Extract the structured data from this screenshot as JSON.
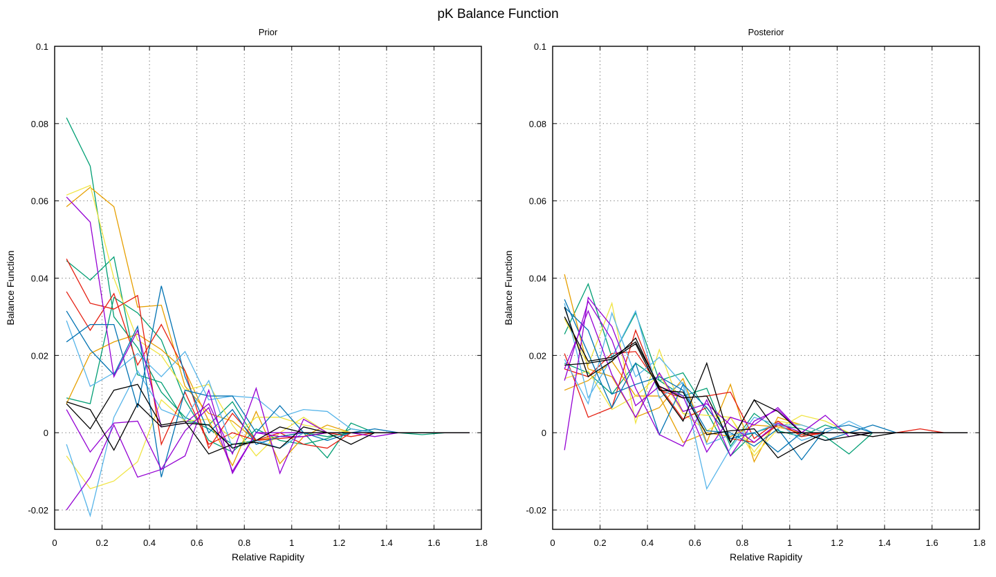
{
  "figure": {
    "title": "pK Balance Function"
  },
  "palette": [
    "#009e73",
    "#e69f00",
    "#f0e442",
    "#e51e10",
    "#56b4e9",
    "#0072b2",
    "#9400d3",
    "#000000"
  ],
  "chart_data": [
    {
      "type": "line",
      "title": "Prior",
      "xlabel": "Relative Rapidity",
      "ylabel": "Balance Function",
      "xlim": [
        0,
        1.8
      ],
      "ylim": [
        -0.025,
        0.1
      ],
      "xticks": [
        0,
        0.2,
        0.4,
        0.6,
        0.8,
        1,
        1.2,
        1.4,
        1.6,
        1.8
      ],
      "xtick_labels": [
        "0",
        "0.2",
        "0.4",
        "0.6",
        "0.8",
        "1",
        "1.2",
        "1.4",
        "1.6",
        "1.8"
      ],
      "yticks": [
        -0.02,
        0,
        0.02,
        0.04,
        0.06,
        0.08,
        0.1
      ],
      "ytick_labels": [
        "-0.02",
        "0",
        "0.02",
        "0.04",
        "0.06",
        "0.08",
        "0.1"
      ],
      "grid": true,
      "x": [
        0.05,
        0.15,
        0.25,
        0.35,
        0.45,
        0.55,
        0.65,
        0.75,
        0.85,
        0.95,
        1.05,
        1.15,
        1.25,
        1.35,
        1.45,
        1.55,
        1.65,
        1.75
      ],
      "series": [
        {
          "color": "#009e73",
          "values": [
            0.0815,
            0.069,
            0.03,
            0.022,
            0.0105,
            0.004,
            0.001,
            -0.003,
            -0.002,
            -0.001,
            0.0,
            -0.001,
            0.0,
            0.0,
            0.0,
            -0.0005,
            0,
            0
          ]
        },
        {
          "color": "#009e73",
          "values": [
            0.0445,
            0.0395,
            0.0455,
            0.015,
            0.013,
            0.003,
            0.002,
            0.008,
            -0.002,
            -0.004,
            0.0,
            -0.0065,
            0.0025,
            0.0,
            0.0,
            0,
            0,
            0
          ]
        },
        {
          "color": "#009e73",
          "values": [
            0.009,
            0.0075,
            0.035,
            0.031,
            0.024,
            0.0085,
            -0.002,
            -0.005,
            0.001,
            -0.002,
            -0.003,
            -0.0015,
            0.001,
            0.0,
            0.0,
            0,
            0,
            0
          ]
        },
        {
          "color": "#e69f00",
          "values": [
            0.0585,
            0.0635,
            0.0585,
            0.0325,
            0.033,
            0.012,
            0.005,
            0.003,
            -0.002,
            -0.001,
            0.0,
            0.0,
            0.0,
            0.0,
            0.0,
            0,
            0,
            0
          ]
        },
        {
          "color": "#e69f00",
          "values": [
            0.0075,
            0.0205,
            0.0235,
            0.0255,
            0.0215,
            0.016,
            0.003,
            -0.0085,
            0.0055,
            -0.008,
            -0.001,
            0.002,
            0.0,
            0.0,
            0.0,
            0,
            0,
            0
          ]
        },
        {
          "color": "#f0e442",
          "values": [
            0.0615,
            0.064,
            0.04,
            0.024,
            0.02,
            0.011,
            0.0125,
            0.002,
            -0.006,
            0.0,
            0.004,
            0.0,
            0.0,
            0.0,
            0.0,
            0,
            0,
            0
          ]
        },
        {
          "color": "#f0e442",
          "values": [
            -0.006,
            -0.0145,
            -0.0125,
            -0.0075,
            0.0085,
            0.003,
            0.0035,
            -0.0015,
            0.004,
            0.004,
            0.002,
            0.001,
            0.0,
            0.0,
            0.0,
            0,
            0,
            0
          ]
        },
        {
          "color": "#e51e10",
          "values": [
            0.045,
            0.0335,
            0.032,
            0.0355,
            -0.003,
            0.0105,
            -0.003,
            0.0,
            -0.002,
            -0.0015,
            -0.001,
            0.0,
            -0.001,
            0.0,
            0.0,
            0,
            0,
            0
          ]
        },
        {
          "color": "#e51e10",
          "values": [
            0.0365,
            0.0265,
            0.036,
            0.0175,
            0.028,
            0.016,
            -0.004,
            0.005,
            -0.002,
            0.0,
            -0.003,
            -0.004,
            0.0,
            0.0,
            0.0,
            0,
            0,
            0
          ]
        },
        {
          "color": "#56b4e9",
          "values": [
            0.029,
            0.012,
            0.0155,
            0.0205,
            0.0145,
            0.021,
            0.0085,
            0.0095,
            0.009,
            0.004,
            0.006,
            0.0055,
            0.001,
            0.0,
            0.0,
            0,
            0,
            0
          ]
        },
        {
          "color": "#56b4e9",
          "values": [
            -0.003,
            -0.0215,
            0.004,
            0.016,
            0.006,
            0.0035,
            0.0135,
            -0.004,
            -0.002,
            -0.004,
            0.0,
            0.0,
            0.0,
            0.0,
            0.0,
            0,
            0,
            0
          ]
        },
        {
          "color": "#0072b2",
          "values": [
            0.0315,
            0.0215,
            0.015,
            0.0275,
            -0.0115,
            0.011,
            0.0095,
            0.0095,
            0.0,
            0.007,
            0.0,
            -0.002,
            0.0,
            0.001,
            0.0,
            0,
            0,
            0
          ]
        },
        {
          "color": "#0072b2",
          "values": [
            0.0235,
            0.028,
            0.028,
            0.0065,
            0.038,
            0.0145,
            0.0,
            0.006,
            -0.003,
            -0.001,
            0.0,
            0.0,
            0.0,
            0.0,
            0.0,
            0,
            0,
            0
          ]
        },
        {
          "color": "#9400d3",
          "values": [
            0.061,
            0.0545,
            0.0145,
            0.0265,
            0.0015,
            0.0025,
            0.0075,
            -0.0055,
            0.0115,
            -0.0105,
            0.0035,
            0.0,
            0.0,
            0.0,
            0.0,
            0,
            0,
            0
          ]
        },
        {
          "color": "#9400d3",
          "values": [
            0.006,
            -0.005,
            0.0025,
            0.003,
            -0.0095,
            0.0005,
            0.0065,
            -0.01,
            0.0,
            -0.001,
            -0.001,
            0.0,
            0.0,
            0.0,
            0.0,
            0,
            0,
            0
          ]
        },
        {
          "color": "#9400d3",
          "values": [
            -0.02,
            -0.0115,
            0.002,
            -0.0115,
            -0.0095,
            -0.006,
            0.011,
            -0.0105,
            0.0,
            0.0,
            0.0,
            0.0,
            0.0,
            -0.001,
            0.0,
            0,
            0,
            0
          ]
        },
        {
          "color": "#000000",
          "values": [
            0.0075,
            0.001,
            0.011,
            0.0125,
            0.002,
            0.003,
            -0.0055,
            -0.003,
            -0.0025,
            -0.004,
            0.0015,
            0.0,
            -0.003,
            0.0,
            0.0,
            0,
            0,
            0
          ]
        },
        {
          "color": "#000000",
          "values": [
            0.008,
            0.006,
            -0.0045,
            0.0075,
            0.0015,
            0.0025,
            0.002,
            -0.004,
            -0.002,
            0.0015,
            0.0,
            0.0,
            0.0,
            0.0,
            0.0,
            0,
            0,
            0
          ]
        }
      ]
    },
    {
      "type": "line",
      "title": "Posterior",
      "xlabel": "Relative Rapidity",
      "ylabel": "Balance Function",
      "xlim": [
        0,
        1.8
      ],
      "ylim": [
        -0.025,
        0.1
      ],
      "xticks": [
        0,
        0.2,
        0.4,
        0.6,
        0.8,
        1,
        1.2,
        1.4,
        1.6,
        1.8
      ],
      "xtick_labels": [
        "0",
        "0.2",
        "0.4",
        "0.6",
        "0.8",
        "1",
        "1.2",
        "1.4",
        "1.6",
        "1.8"
      ],
      "yticks": [
        -0.02,
        0,
        0.02,
        0.04,
        0.06,
        0.08,
        0.1
      ],
      "ytick_labels": [
        "-0.02",
        "0",
        "0.02",
        "0.04",
        "0.06",
        "0.08",
        "0.1"
      ],
      "grid": true,
      "x": [
        0.05,
        0.15,
        0.25,
        0.35,
        0.45,
        0.55,
        0.65,
        0.75,
        0.85,
        0.95,
        1.05,
        1.15,
        1.25,
        1.35,
        1.45,
        1.55,
        1.65,
        1.75
      ],
      "series": [
        {
          "color": "#009e73",
          "values": [
            0.0255,
            0.0385,
            0.0195,
            0.031,
            0.0135,
            0.0155,
            0.0055,
            -0.006,
            0.0,
            0.002,
            0.001,
            -0.001,
            -0.0055,
            0.0,
            0.0,
            0,
            0,
            0
          ]
        },
        {
          "color": "#009e73",
          "values": [
            0.018,
            0.0155,
            0.01,
            0.018,
            0.0135,
            0.0095,
            0.0115,
            -0.0035,
            0.005,
            0.0005,
            -0.001,
            0.002,
            0.0,
            0.0,
            0.0,
            0,
            0,
            0
          ]
        },
        {
          "color": "#e69f00",
          "values": [
            0.041,
            0.0165,
            0.0145,
            0.004,
            0.0065,
            0.014,
            -0.0025,
            0.0125,
            -0.0075,
            0.004,
            0.002,
            0.0,
            0.0,
            0.0,
            0.0,
            0,
            0,
            0
          ]
        },
        {
          "color": "#e69f00",
          "values": [
            0.011,
            0.0135,
            0.0185,
            0.0095,
            0.0095,
            -0.0025,
            0.0,
            -0.001,
            0.002,
            0.0015,
            0.0,
            0.0,
            0.0,
            0.0,
            0.0,
            0,
            0,
            0
          ]
        },
        {
          "color": "#f0e442",
          "values": [
            0.0295,
            0.0175,
            0.0335,
            0.0025,
            0.0215,
            0.005,
            0.0005,
            0.004,
            -0.006,
            0.001,
            0.0045,
            0.003,
            0.0,
            0.0,
            0.0,
            0,
            0,
            0
          ]
        },
        {
          "color": "#f0e442",
          "values": [
            0.014,
            0.016,
            0.006,
            0.0095,
            0.015,
            0.005,
            0.0045,
            0.004,
            -0.005,
            0.003,
            0.002,
            0.0,
            0.0,
            0.0,
            0.0,
            0,
            0,
            0
          ]
        },
        {
          "color": "#e51e10",
          "values": [
            0.0205,
            0.004,
            0.0065,
            0.0265,
            0.011,
            0.009,
            0.0095,
            0.0105,
            -0.0015,
            0.003,
            -0.001,
            0.0,
            0.0,
            0.0,
            0.0,
            0.001,
            0,
            0
          ]
        },
        {
          "color": "#e51e10",
          "values": [
            0.0165,
            0.0145,
            0.0205,
            0.021,
            0.012,
            0.0035,
            0.0065,
            -0.0015,
            -0.0025,
            0.002,
            -0.0005,
            0.0,
            0.0,
            0.0,
            0.0,
            0,
            0,
            0
          ]
        },
        {
          "color": "#56b4e9",
          "values": [
            0.019,
            0.0075,
            0.031,
            0.0145,
            0.0195,
            0.0125,
            -0.0145,
            -0.004,
            0.004,
            0.002,
            0.002,
            0.0,
            0.003,
            0.0,
            0.0,
            0,
            0,
            0
          ]
        },
        {
          "color": "#56b4e9",
          "values": [
            0.0335,
            0.009,
            0.0195,
            0.0315,
            0.009,
            0.013,
            -0.003,
            -0.0005,
            0.0,
            0.0025,
            -0.002,
            0.0,
            0.0,
            0.0,
            0.0,
            0,
            0,
            0
          ]
        },
        {
          "color": "#0072b2",
          "values": [
            0.0345,
            0.0205,
            0.0065,
            0.018,
            -0.0005,
            0.0125,
            0.0065,
            -0.0015,
            0.0,
            -0.005,
            0.0,
            -0.002,
            0.0,
            0.002,
            0.0,
            0,
            0,
            0
          ]
        },
        {
          "color": "#0072b2",
          "values": [
            0.0325,
            0.0265,
            0.01,
            0.0125,
            0.0145,
            0.011,
            0.0005,
            0.0,
            -0.0035,
            0.001,
            -0.007,
            0.001,
            0.002,
            0.0,
            0.0,
            0,
            0,
            0
          ]
        },
        {
          "color": "#9400d3",
          "values": [
            -0.0045,
            0.035,
            0.0275,
            0.0115,
            -0.0005,
            -0.0035,
            0.0085,
            -0.006,
            0.003,
            0.006,
            0.0,
            0.0,
            0.0,
            0.0,
            0.0,
            0,
            0,
            0
          ]
        },
        {
          "color": "#9400d3",
          "values": [
            0.0135,
            0.034,
            0.024,
            0.007,
            0.012,
            0.0095,
            -0.005,
            0.004,
            0.002,
            0.0065,
            0.0,
            0.0045,
            -0.001,
            0.0,
            0.0,
            0,
            0,
            0
          ]
        },
        {
          "color": "#9400d3",
          "values": [
            0.0165,
            0.0315,
            0.015,
            0.004,
            0.0155,
            0.0055,
            0.0075,
            0.002,
            -0.0025,
            0.0025,
            0.0,
            0.0,
            0.0,
            0.0,
            0.0,
            0,
            0,
            0
          ]
        },
        {
          "color": "#000000",
          "values": [
            0.0325,
            0.0145,
            0.0185,
            0.0245,
            0.0115,
            0.003,
            0.018,
            -0.0025,
            0.0085,
            0.0055,
            0.0,
            -0.002,
            -0.001,
            0.0,
            0.0,
            0,
            0,
            0
          ]
        },
        {
          "color": "#000000",
          "values": [
            0.0175,
            0.018,
            0.019,
            0.023,
            0.011,
            0.0105,
            -0.0005,
            0.0005,
            0.001,
            -0.0065,
            -0.003,
            0.0,
            0.0,
            -0.001,
            0.0,
            0,
            0,
            0
          ]
        },
        {
          "color": "#000000",
          "values": [
            0.03,
            0.0185,
            0.0195,
            0.0235,
            0.012,
            0.009,
            0.0095,
            -0.0025,
            0.0085,
            0.0,
            0.0,
            0.0,
            0.0,
            0.0,
            0.0,
            0,
            0,
            0
          ]
        }
      ]
    }
  ]
}
